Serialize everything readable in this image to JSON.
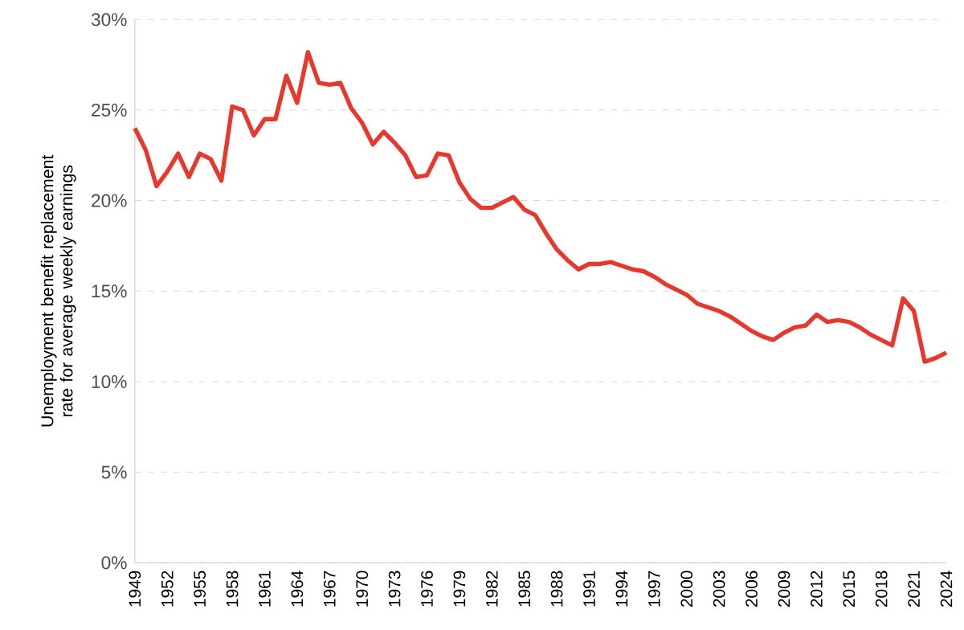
{
  "chart_data": {
    "type": "line",
    "ylabel": "Unemployment benefit replacement rate for average weekly earnings",
    "x": [
      1949,
      1950,
      1951,
      1952,
      1953,
      1954,
      1955,
      1956,
      1957,
      1958,
      1959,
      1960,
      1961,
      1962,
      1963,
      1964,
      1965,
      1966,
      1967,
      1968,
      1969,
      1970,
      1971,
      1972,
      1973,
      1974,
      1975,
      1976,
      1977,
      1978,
      1979,
      1980,
      1981,
      1982,
      1983,
      1984,
      1985,
      1986,
      1987,
      1988,
      1989,
      1990,
      1991,
      1992,
      1993,
      1994,
      1995,
      1996,
      1997,
      1998,
      1999,
      2000,
      2001,
      2002,
      2003,
      2004,
      2005,
      2006,
      2007,
      2008,
      2009,
      2010,
      2011,
      2012,
      2013,
      2014,
      2015,
      2016,
      2017,
      2018,
      2019,
      2020,
      2021,
      2022,
      2023,
      2024
    ],
    "series": [
      {
        "color": "#e8372d",
        "values": [
          24.0,
          22.8,
          20.8,
          21.6,
          22.6,
          21.3,
          22.6,
          22.3,
          21.1,
          25.2,
          25.0,
          23.6,
          24.5,
          24.5,
          26.9,
          25.4,
          28.2,
          26.5,
          26.4,
          26.5,
          25.1,
          24.3,
          23.1,
          23.8,
          23.2,
          22.5,
          21.3,
          21.4,
          22.6,
          22.5,
          21.0,
          20.1,
          19.6,
          19.6,
          19.9,
          20.2,
          19.5,
          19.2,
          18.2,
          17.3,
          16.7,
          16.2,
          16.5,
          16.5,
          16.6,
          16.4,
          16.2,
          16.1,
          15.8,
          15.4,
          15.1,
          14.8,
          14.3,
          14.1,
          13.9,
          13.6,
          13.2,
          12.8,
          12.5,
          12.3,
          12.7,
          13.0,
          13.1,
          13.7,
          13.3,
          13.4,
          13.3,
          13.0,
          12.6,
          12.3,
          12.0,
          14.6,
          13.9,
          11.1,
          11.3,
          11.6
        ]
      }
    ],
    "xlim": [
      1949,
      2024
    ],
    "xticks": [
      1949,
      1952,
      1955,
      1958,
      1961,
      1964,
      1967,
      1970,
      1973,
      1976,
      1979,
      1982,
      1985,
      1988,
      1991,
      1994,
      1997,
      2000,
      2003,
      2006,
      2009,
      2012,
      2015,
      2018,
      2021,
      2024
    ],
    "ylim": [
      0,
      30
    ],
    "yticks": [
      {
        "value": 0,
        "label": "0%"
      },
      {
        "value": 5,
        "label": "5%"
      },
      {
        "value": 10,
        "label": "10%"
      },
      {
        "value": 15,
        "label": "15%"
      },
      {
        "value": 20,
        "label": "20%"
      },
      {
        "value": 25,
        "label": "25%"
      },
      {
        "value": 30,
        "label": "30%"
      }
    ],
    "grid": "y",
    "marker": "none",
    "line_style": "solid"
  }
}
